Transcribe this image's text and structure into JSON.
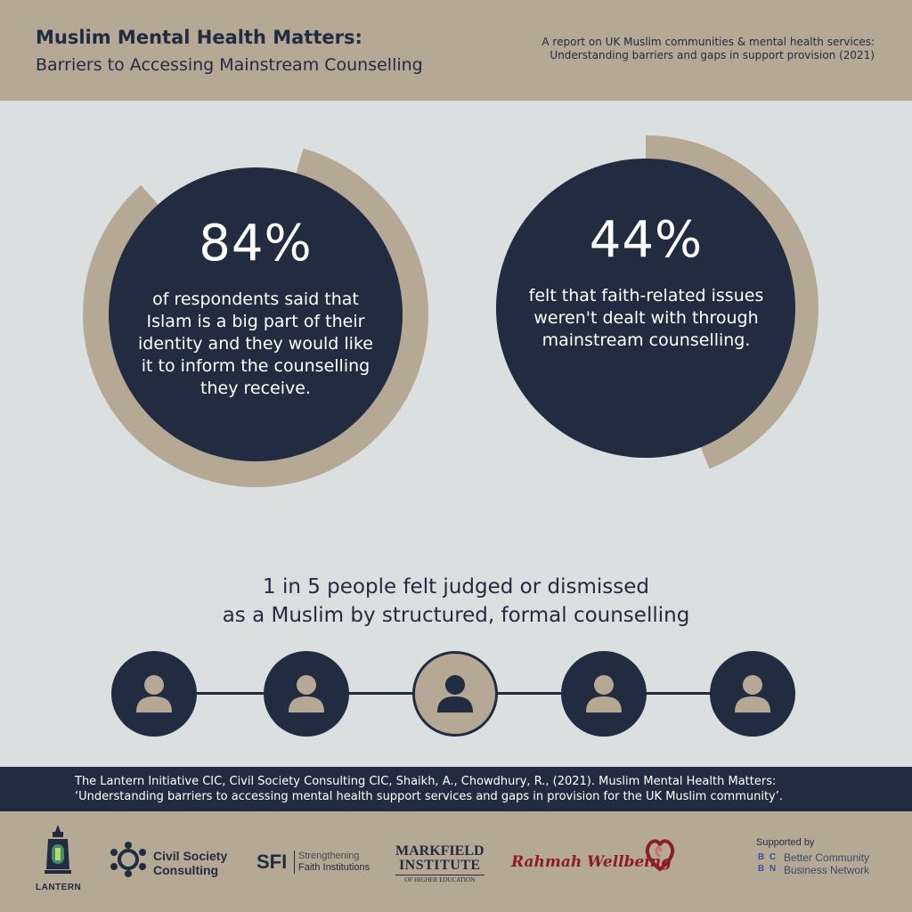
{
  "header": {
    "title": "Muslim Mental Health Matters:",
    "subtitle": "Barriers to Accessing Mainstream Counselling",
    "report_line1": "A report on UK Muslim communities & mental health services:",
    "report_line2": "Understanding barriers and gaps in support provision (2021)"
  },
  "stats": [
    {
      "value": "84%",
      "fraction": 0.84,
      "description": "of respondents said that Islam is a big part of their identity and they would like it to inform the counselling they receive."
    },
    {
      "value": "44%",
      "fraction": 0.44,
      "description": "felt that faith-related issues weren't dealt with through mainstream counselling."
    }
  ],
  "judged": {
    "line1": "1 in 5 people felt judged or dismissed",
    "line2": "as a Muslim by structured, formal counselling",
    "highlighted": 1,
    "total": 5
  },
  "citation": {
    "line1": "The Lantern Initiative CIC, Civil Society Consulting CIC, Shaikh, A., Chowdhury, R., (2021). Muslim Mental Health Matters:",
    "line2": "‘Understanding barriers to accessing mental health support services and gaps in provision for the UK Muslim community’."
  },
  "logos": {
    "lantern": "LANTERN",
    "csc_line1": "Civil Society",
    "csc_line2": "Consulting",
    "sfi_mark": "SFI",
    "sfi_line1": "Strengthening",
    "sfi_line2": "Faith Institutions",
    "markfield_line1": "MARKFIELD",
    "markfield_line2": "INSTITUTE",
    "markfield_line3": "OF HIGHER EDUCATION",
    "rahmah": "Rahmah Wellbeing",
    "supported_by": "Supported by",
    "bcbn_line1": "Better Community",
    "bcbn_line2": "Business Network",
    "bcbn_letters": [
      "B",
      "C",
      "B",
      "N"
    ]
  },
  "colors": {
    "navy": "#222c40",
    "tan": "#b5a895",
    "background": "#dcdfe0",
    "rahmah_red": "#8c1c2a"
  }
}
